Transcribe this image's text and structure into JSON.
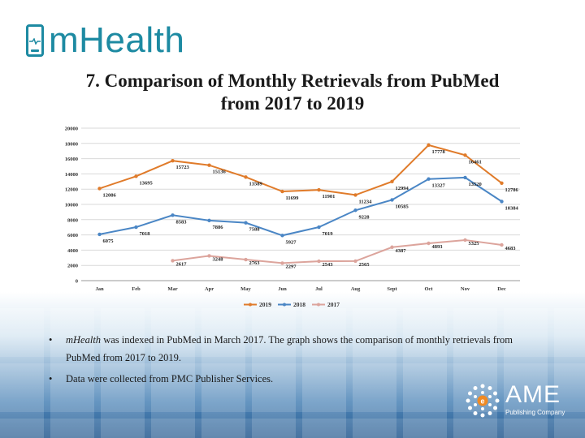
{
  "brand": {
    "logo_text": "mHealth",
    "color": "#1d8aa2"
  },
  "slide_title_line1": "7. Comparison of Monthly Retrievals from PubMed",
  "slide_title_line2": "from 2017 to 2019",
  "chart_data": {
    "type": "line",
    "categories": [
      "Jan",
      "Feb",
      "Mar",
      "Apr",
      "May",
      "Jun",
      "Jul",
      "Aug",
      "Sept",
      "Oct",
      "Nov",
      "Dec"
    ],
    "ylim": [
      0,
      20000
    ],
    "yticks": [
      0,
      2000,
      4000,
      6000,
      8000,
      10000,
      12000,
      14000,
      16000,
      18000,
      20000
    ],
    "ytick_labels": [
      "0",
      "2000",
      "4000",
      "6000",
      "8000",
      "10000",
      "12000",
      "14000",
      "16000",
      "18000",
      "20000"
    ],
    "grid": true,
    "legend_position": "bottom",
    "series": [
      {
        "name": "2019",
        "color": "#e07b2a",
        "values": [
          12086,
          13695,
          15723,
          15136,
          13589,
          11699,
          11901,
          11234,
          12994,
          17778,
          16461,
          12786
        ],
        "labels": [
          "12086",
          "13695",
          "15723",
          "15136",
          "13589",
          "11699",
          "11901",
          "11234",
          "12994",
          "17778",
          "16461",
          "12786"
        ]
      },
      {
        "name": "2018",
        "color": "#4a86c5",
        "values": [
          6075,
          7018,
          8583,
          7886,
          7588,
          5927,
          7019,
          9228,
          10585,
          13327,
          13520,
          10384
        ],
        "labels": [
          "6075",
          "7018",
          "8583",
          "7886",
          "7588",
          "5927",
          "7019",
          "9228",
          "10585",
          "13327",
          "13520",
          "10384"
        ]
      },
      {
        "name": "2017",
        "color": "#dca49c",
        "values": [
          null,
          null,
          2617,
          3248,
          2763,
          2297,
          2543,
          2565,
          4387,
          4893,
          5325,
          4683
        ],
        "labels": [
          "",
          "",
          "2617",
          "3248",
          "2763",
          "2297",
          "2543",
          "2565",
          "4387",
          "4893",
          "5325",
          "4683"
        ]
      }
    ]
  },
  "bullets": [
    {
      "marker": "•",
      "em": "mHealth",
      "text": " was indexed in PubMed in March 2017. The graph shows the comparison of monthly retrievals from PubMed from 2017 to 2019."
    },
    {
      "marker": "•",
      "em": "",
      "text": "Data were collected from PMC Publisher Services."
    }
  ],
  "publisher": {
    "name": "AME",
    "subtitle": "Publishing Company"
  }
}
